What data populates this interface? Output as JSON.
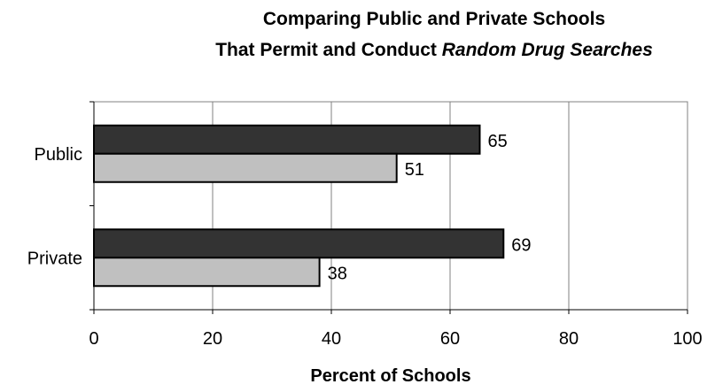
{
  "chart_data": {
    "type": "bar",
    "orientation": "horizontal",
    "title": {
      "line1": "Comparing Public and Private Schools",
      "line2_prefix": "That Permit and Conduct ",
      "line2_italic": "Random Drug Searches"
    },
    "xlabel": "Percent of Schools",
    "ylabel": "",
    "categories": [
      "Public",
      "Private"
    ],
    "series": [
      {
        "values": [
          65,
          69
        ],
        "color": "#333333"
      },
      {
        "values": [
          51,
          38
        ],
        "color": "#c0c0c0"
      }
    ],
    "xlim": [
      0,
      100
    ],
    "xticks": [
      0,
      20,
      40,
      60,
      80,
      100
    ],
    "grid": true,
    "legend": "none"
  }
}
